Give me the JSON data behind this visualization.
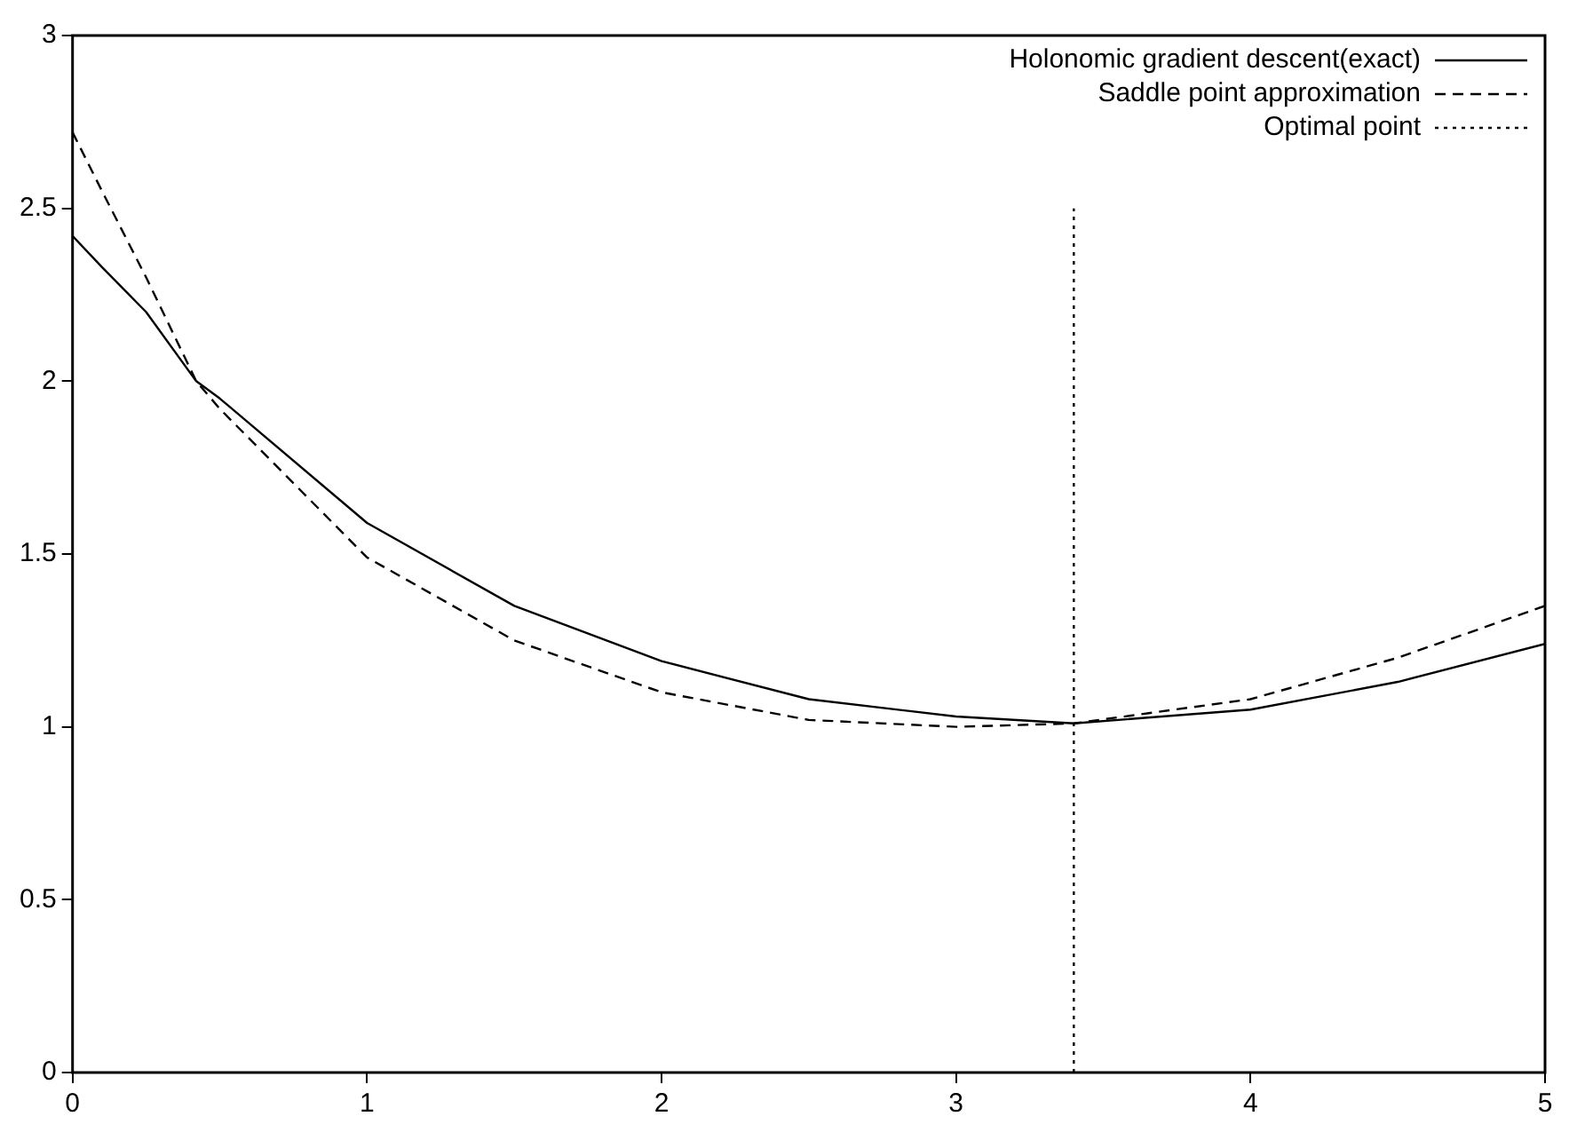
{
  "chart_data": {
    "type": "line",
    "xlim": [
      0,
      5
    ],
    "xticks": [
      0,
      1,
      2,
      3,
      4,
      5
    ],
    "ylim": [
      0,
      3
    ],
    "yticks": [
      0,
      0.5,
      1,
      1.5,
      2,
      2.5,
      3
    ],
    "grid": false,
    "legend": "top right",
    "marker": "none",
    "series": [
      {
        "name": "Holonomic gradient descent(exact)",
        "color": "#000000",
        "line_style": "solid",
        "x": [
          0,
          0.1,
          0.25,
          0.42,
          0.5,
          1,
          1.5,
          2,
          2.5,
          3,
          3.4,
          4,
          4.5,
          5
        ],
        "values": [
          2.42,
          2.33,
          2.2,
          2.0,
          1.95,
          1.59,
          1.35,
          1.19,
          1.08,
          1.03,
          1.01,
          1.05,
          1.13,
          1.24
        ]
      },
      {
        "name": "Saddle point approximation",
        "color": "#000000",
        "line_style": "dashed",
        "x": [
          0,
          0.1,
          0.25,
          0.42,
          0.5,
          1,
          1.5,
          2,
          2.5,
          3,
          3.4,
          4,
          4.5,
          5
        ],
        "values": [
          2.72,
          2.55,
          2.3,
          2.0,
          1.92,
          1.49,
          1.25,
          1.1,
          1.02,
          1.0,
          1.01,
          1.08,
          1.2,
          1.35
        ]
      },
      {
        "name": "Optimal point",
        "color": "#000000",
        "line_style": "dotted",
        "x": [
          3.4,
          3.4
        ],
        "values": [
          0,
          2.5
        ]
      }
    ]
  }
}
